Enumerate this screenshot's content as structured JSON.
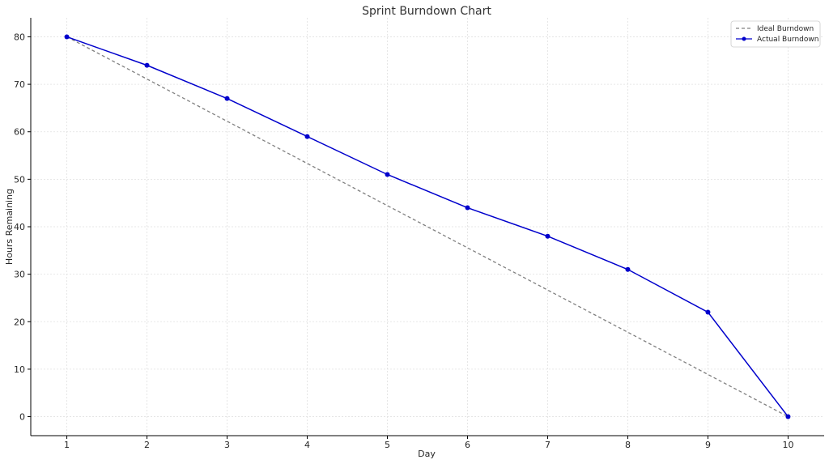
{
  "chart_data": {
    "type": "line",
    "title": "Sprint Burndown Chart",
    "xlabel": "Day",
    "ylabel": "Hours Remaining",
    "x": [
      1,
      2,
      3,
      4,
      5,
      6,
      7,
      8,
      9,
      10
    ],
    "xlim": [
      0.55,
      10.45
    ],
    "ylim": [
      -4,
      84
    ],
    "yticks": [
      0,
      10,
      20,
      30,
      40,
      50,
      60,
      70,
      80
    ],
    "grid": true,
    "legend_position": "top-right",
    "series": [
      {
        "name": "Ideal Burndown",
        "style": "dashed",
        "color": "#808080",
        "markers": false,
        "values": [
          80,
          71.11,
          62.22,
          53.33,
          44.44,
          35.56,
          26.67,
          17.78,
          8.89,
          0
        ]
      },
      {
        "name": "Actual Burndown",
        "style": "solid",
        "color": "#0000cc",
        "markers": true,
        "values": [
          80,
          74,
          67,
          59,
          51,
          44,
          38,
          31,
          22,
          0
        ]
      }
    ]
  }
}
